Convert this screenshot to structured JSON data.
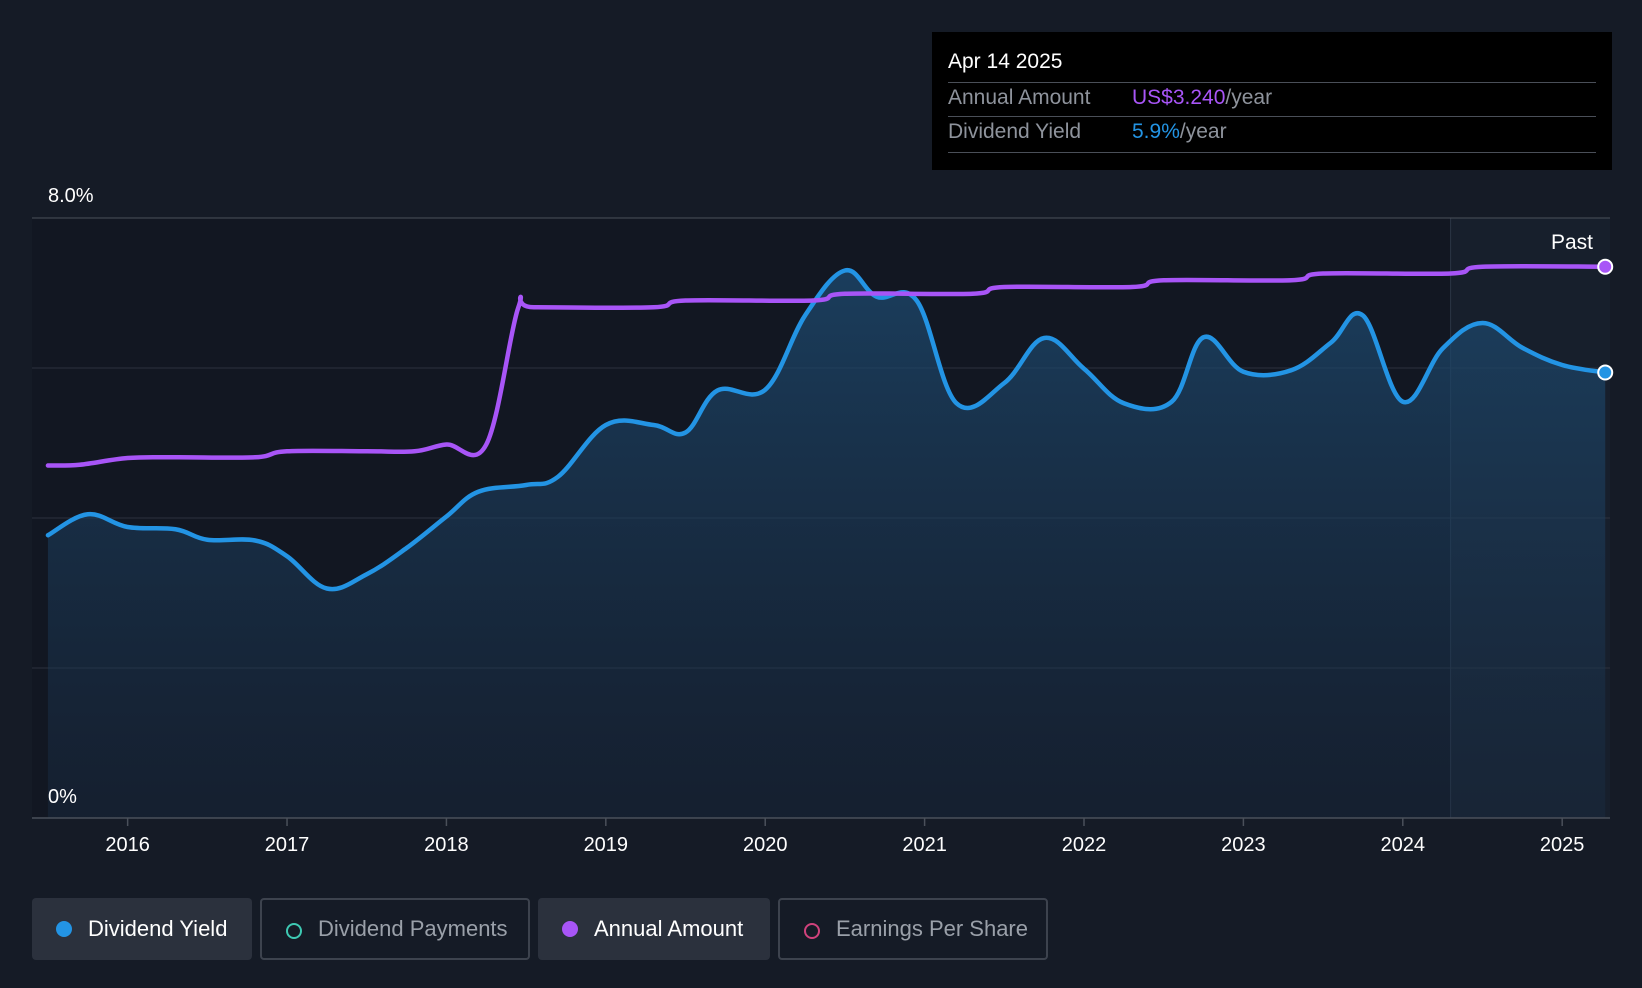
{
  "tooltip": {
    "date": "Apr 14 2025",
    "rows": [
      {
        "label": "Annual Amount",
        "value": "US$3.240",
        "unit": "/year",
        "color": "#a855f7"
      },
      {
        "label": "Dividend Yield",
        "value": "5.9%",
        "unit": "/year",
        "color": "#2394e4"
      }
    ]
  },
  "legend": [
    {
      "label": "Dividend Yield",
      "color": "#2394e4",
      "active": true
    },
    {
      "label": "Dividend Payments",
      "color": "#3ec9b3",
      "active": false
    },
    {
      "label": "Annual Amount",
      "color": "#a855f7",
      "active": true
    },
    {
      "label": "Earnings Per Share",
      "color": "#d0427c",
      "active": false
    }
  ],
  "chart_data": {
    "type": "line",
    "y_tick_labels": [
      "8.0%",
      "0%"
    ],
    "ylim": [
      0,
      8
    ],
    "x_tick_labels": [
      "2016",
      "2017",
      "2018",
      "2019",
      "2020",
      "2021",
      "2022",
      "2023",
      "2024",
      "2025"
    ],
    "x_range": [
      2015.4,
      2025.3
    ],
    "grid": true,
    "past_label": "Past",
    "past_start": 2024.3,
    "series": [
      {
        "name": "Dividend Yield",
        "color": "#2394e4",
        "area": true,
        "points": [
          [
            2015.5,
            3.77
          ],
          [
            2015.75,
            4.05
          ],
          [
            2016.0,
            3.88
          ],
          [
            2016.3,
            3.85
          ],
          [
            2016.5,
            3.71
          ],
          [
            2016.8,
            3.7
          ],
          [
            2017.0,
            3.49
          ],
          [
            2017.25,
            3.06
          ],
          [
            2017.5,
            3.25
          ],
          [
            2017.75,
            3.6
          ],
          [
            2018.0,
            4.02
          ],
          [
            2018.2,
            4.35
          ],
          [
            2018.5,
            4.44
          ],
          [
            2018.7,
            4.55
          ],
          [
            2019.0,
            5.24
          ],
          [
            2019.3,
            5.24
          ],
          [
            2019.5,
            5.14
          ],
          [
            2019.7,
            5.7
          ],
          [
            2020.0,
            5.71
          ],
          [
            2020.25,
            6.7
          ],
          [
            2020.5,
            7.3
          ],
          [
            2020.7,
            6.95
          ],
          [
            2020.95,
            6.9
          ],
          [
            2021.2,
            5.53
          ],
          [
            2021.5,
            5.8
          ],
          [
            2021.75,
            6.4
          ],
          [
            2022.0,
            5.99
          ],
          [
            2022.25,
            5.53
          ],
          [
            2022.55,
            5.55
          ],
          [
            2022.75,
            6.41
          ],
          [
            2023.0,
            5.95
          ],
          [
            2023.3,
            5.97
          ],
          [
            2023.55,
            6.34
          ],
          [
            2023.75,
            6.7
          ],
          [
            2024.0,
            5.55
          ],
          [
            2024.25,
            6.26
          ],
          [
            2024.5,
            6.6
          ],
          [
            2024.75,
            6.27
          ],
          [
            2025.0,
            6.04
          ],
          [
            2025.27,
            5.94
          ]
        ]
      },
      {
        "name": "Annual Amount",
        "color": "#a855f7",
        "area": false,
        "points": [
          [
            2015.5,
            4.7
          ],
          [
            2015.7,
            4.71
          ],
          [
            2016.0,
            4.8
          ],
          [
            2016.3,
            4.81
          ],
          [
            2016.8,
            4.81
          ],
          [
            2017.0,
            4.89
          ],
          [
            2017.5,
            4.89
          ],
          [
            2017.8,
            4.89
          ],
          [
            2018.0,
            4.98
          ],
          [
            2018.25,
            4.98
          ],
          [
            2018.45,
            6.8
          ],
          [
            2018.55,
            6.81
          ],
          [
            2019.3,
            6.81
          ],
          [
            2019.5,
            6.9
          ],
          [
            2020.3,
            6.9
          ],
          [
            2020.5,
            6.99
          ],
          [
            2021.3,
            6.99
          ],
          [
            2021.5,
            7.08
          ],
          [
            2022.3,
            7.08
          ],
          [
            2022.5,
            7.17
          ],
          [
            2023.3,
            7.17
          ],
          [
            2023.5,
            7.26
          ],
          [
            2024.3,
            7.26
          ],
          [
            2024.5,
            7.35
          ],
          [
            2025.27,
            7.35
          ]
        ]
      }
    ]
  }
}
